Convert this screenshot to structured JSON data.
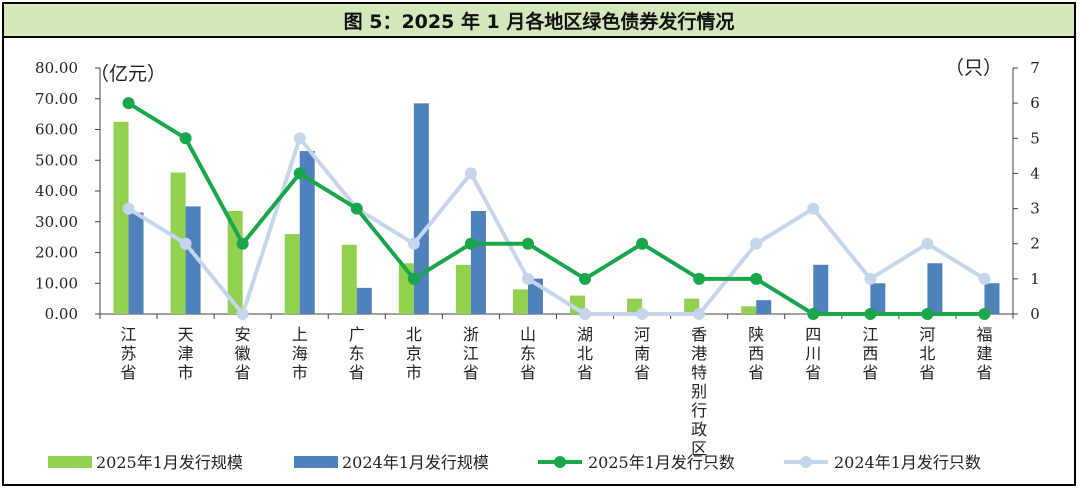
{
  "title": "图 5：2025 年 1 月各地区绿色债券发行情况",
  "chart_data": {
    "type": "bar",
    "title": "图 5：2025 年 1 月各地区绿色债券发行情况",
    "y_left_label": "（亿元）",
    "y_right_label": "（只）",
    "ylim_left": [
      0,
      80
    ],
    "ylim_right": [
      0,
      7
    ],
    "yticks_left": [
      "0.00",
      "10.00",
      "20.00",
      "30.00",
      "40.00",
      "50.00",
      "60.00",
      "70.00",
      "80.00"
    ],
    "yticks_right": [
      "0",
      "1",
      "2",
      "3",
      "4",
      "5",
      "6",
      "7"
    ],
    "categories": [
      "江苏省",
      "天津市",
      "安徽省",
      "上海市",
      "广东省",
      "北京市",
      "浙江省",
      "山东省",
      "湖北省",
      "河南省",
      "香港特别行政区",
      "陕西省",
      "四川省",
      "江西省",
      "河北省",
      "福建省"
    ],
    "bar_series": [
      {
        "name": "2025年1月发行规模",
        "color": "#92d050",
        "axis": "left",
        "values": [
          62.5,
          46,
          33.5,
          26,
          22.5,
          16.5,
          16,
          8,
          6,
          5,
          5,
          2.5,
          0,
          0,
          0,
          0
        ]
      },
      {
        "name": "2024年1月发行规模",
        "color": "#4f81bd",
        "axis": "left",
        "values": [
          33,
          35,
          0,
          53,
          8.5,
          68.5,
          33.5,
          11.5,
          0,
          0,
          0,
          4.5,
          16,
          10,
          16.5,
          10
        ]
      }
    ],
    "line_series": [
      {
        "name": "2025年1月发行只数",
        "color": "#1aa64a",
        "axis": "right",
        "values": [
          6,
          5,
          2,
          4,
          3,
          1,
          2,
          2,
          1,
          2,
          1,
          1,
          0,
          0,
          0,
          0
        ]
      },
      {
        "name": "2024年1月发行只数",
        "color": "#c5d6ec",
        "axis": "right",
        "values": [
          3,
          2,
          0,
          5,
          3,
          2,
          4,
          1,
          0,
          0,
          0,
          2,
          3,
          1,
          2,
          1
        ]
      }
    ],
    "legend_position": "bottom",
    "grid": false
  }
}
